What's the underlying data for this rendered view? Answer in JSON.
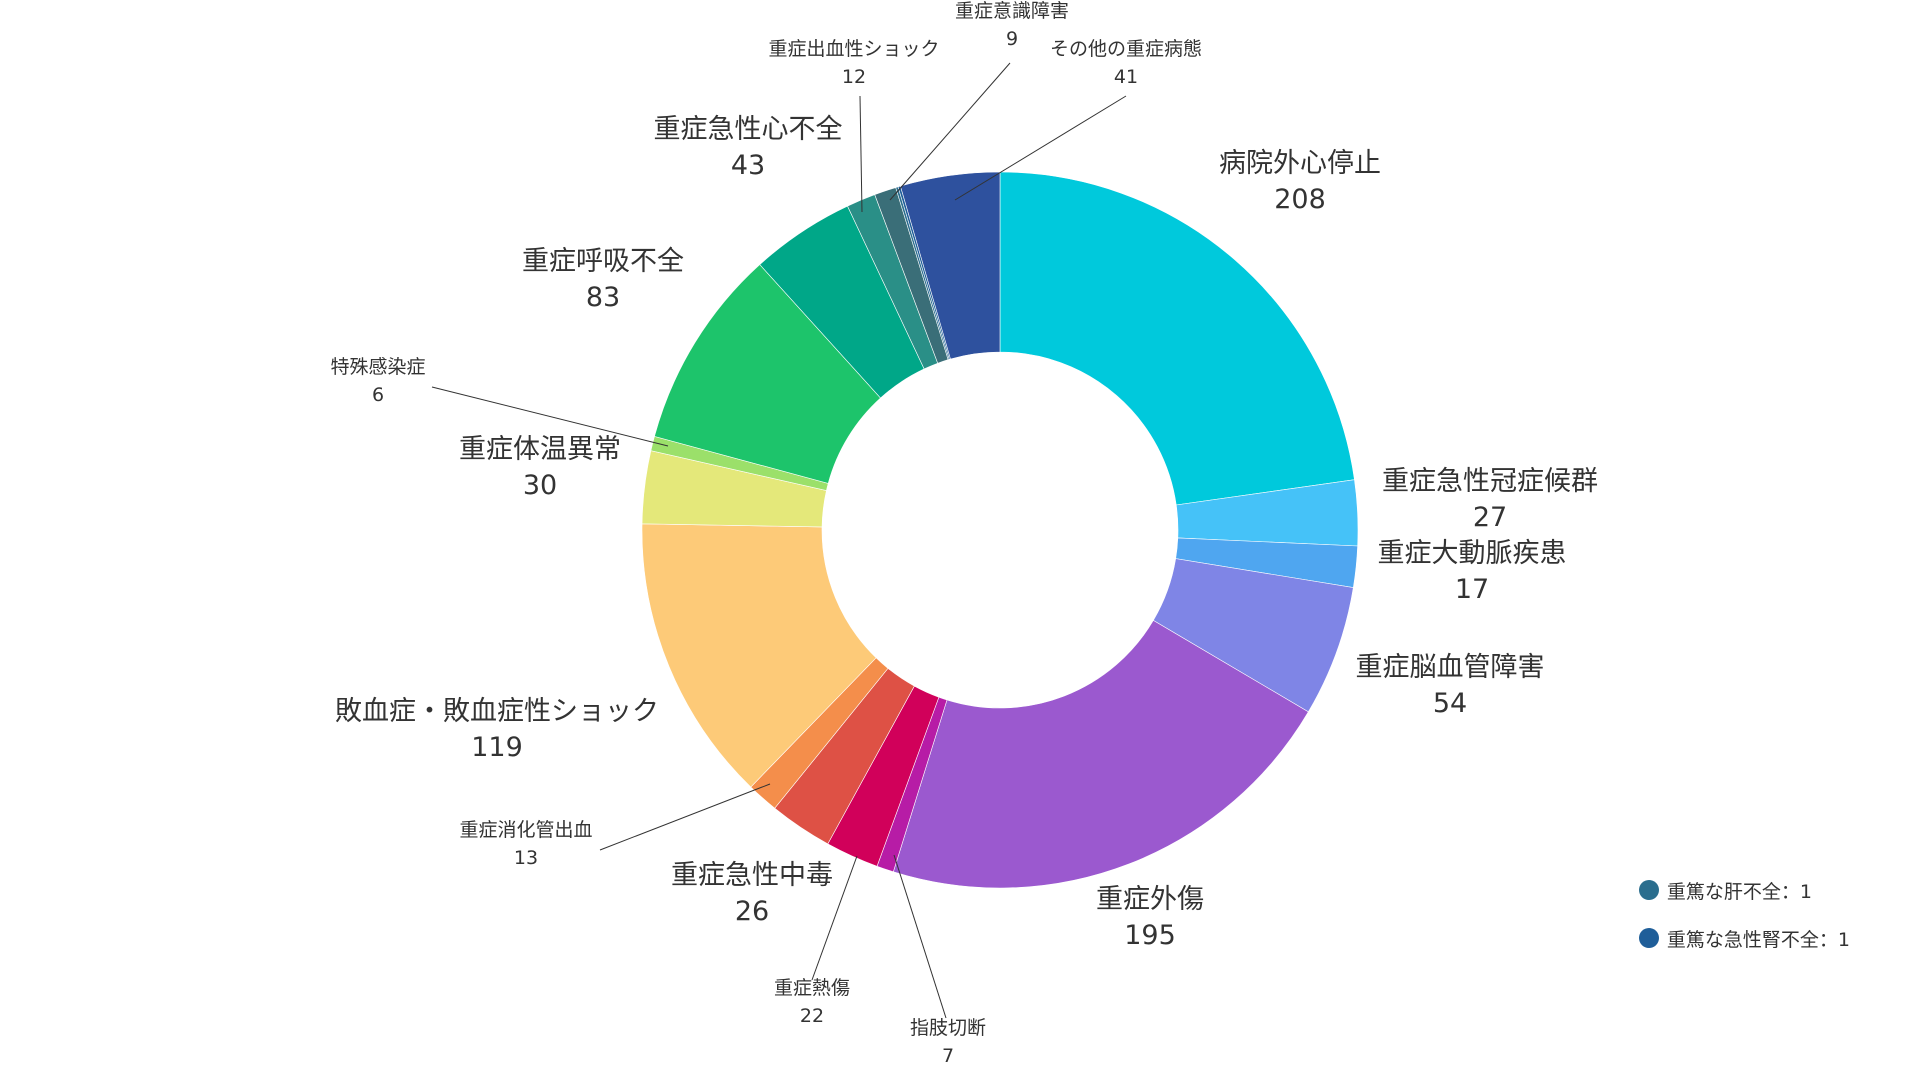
{
  "chart_data": {
    "type": "pie",
    "variant": "donut",
    "slices": [
      {
        "label": "病院外心停止",
        "value": 208,
        "color": "#00C9DC"
      },
      {
        "label": "重症急性冠症候群",
        "value": 27,
        "color": "#45C2F8"
      },
      {
        "label": "重症大動脈疾患",
        "value": 17,
        "color": "#4FA6F0"
      },
      {
        "label": "重症脳血管障害",
        "value": 54,
        "color": "#7F85E6"
      },
      {
        "label": "重症外傷",
        "value": 195,
        "color": "#9B59CF"
      },
      {
        "label": "指肢切断",
        "value": 7,
        "color": "#B71CA6"
      },
      {
        "label": "重症熱傷",
        "value": 22,
        "color": "#D1005A"
      },
      {
        "label": "重症急性中毒",
        "value": 26,
        "color": "#DE5145"
      },
      {
        "label": "重症消化管出血",
        "value": 13,
        "color": "#F48E4B"
      },
      {
        "label": "敗血症・敗血症性ショック",
        "value": 119,
        "color": "#FDCA78"
      },
      {
        "label": "重症体温異常",
        "value": 30,
        "color": "#E4E87A"
      },
      {
        "label": "特殊感染症",
        "value": 6,
        "color": "#9BE06A"
      },
      {
        "label": "重症呼吸不全",
        "value": 83,
        "color": "#1DC46B"
      },
      {
        "label": "重症急性心不全",
        "value": 43,
        "color": "#00A788"
      },
      {
        "label": "重症出血性ショック",
        "value": 12,
        "color": "#2A8F87"
      },
      {
        "label": "重症意識障害",
        "value": 9,
        "color": "#3A6E78"
      },
      {
        "label": "重篤な肝不全",
        "value": 1,
        "color": "#2B6E8E"
      },
      {
        "label": "重篤な急性腎不全",
        "value": 1,
        "color": "#1F5E99"
      },
      {
        "label": "その他の重症病態",
        "value": 41,
        "color": "#2E519E"
      }
    ],
    "legend": [
      {
        "label": "重篤な肝不全：1",
        "color": "#2B6E8E"
      },
      {
        "label": "重篤な急性腎不全：1",
        "color": "#1F5E99"
      }
    ]
  }
}
